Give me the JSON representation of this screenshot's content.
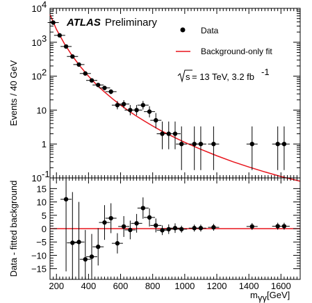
{
  "chart_data": [
    {
      "type": "scatter",
      "panel": "main",
      "title": "",
      "experiment_label": "ATLAS",
      "status_label": "Preliminary",
      "energy_label": "√s = 13 TeV, 3.2 fb-1",
      "energy_parts": {
        "sqrt_s": "s",
        "rest": " = 13 TeV, 3.2 fb",
        "superscript": "-1"
      },
      "xlabel": "m",
      "xlabel_sub": "γγ",
      "xlabel_unit": " [GeV]",
      "ylabel": "Events / 40 GeV",
      "xlim": [
        160,
        1720
      ],
      "ylim": [
        0.1,
        10000
      ],
      "yscale": "log",
      "x_ticks": [
        200,
        400,
        600,
        800,
        1000,
        1200,
        1400,
        1600
      ],
      "y_ticks": [
        {
          "value": 0.1,
          "base": "10",
          "exp": "-1"
        },
        {
          "value": 1,
          "label": "1"
        },
        {
          "value": 10,
          "label": "10"
        },
        {
          "value": 100,
          "base": "10",
          "exp": "2"
        },
        {
          "value": 1000,
          "base": "10",
          "exp": "3"
        },
        {
          "value": 10000,
          "base": "10",
          "exp": "4"
        }
      ],
      "legend": {
        "placement": "top-right",
        "entries": [
          "Data",
          "Background-only fit"
        ]
      },
      "series": [
        {
          "name": "Data",
          "x": [
            180,
            220,
            260,
            300,
            340,
            380,
            420,
            460,
            500,
            540,
            580,
            620,
            660,
            700,
            740,
            780,
            820,
            860,
            900,
            940,
            980,
            1060,
            1100,
            1180,
            1420,
            1580,
            1620
          ],
          "y": [
            3800,
            1600,
            750,
            380,
            220,
            120,
            75,
            55,
            45,
            35,
            14,
            15,
            10,
            10,
            14,
            9,
            5,
            2,
            2,
            2,
            1,
            1,
            1,
            1,
            1,
            1,
            1
          ],
          "y_err_low": [
            60,
            40,
            27,
            19,
            15,
            11,
            8.5,
            7,
            6.5,
            5.6,
            3.5,
            3.6,
            3,
            3,
            3.6,
            2.9,
            2.1,
            1.3,
            1.3,
            1.3,
            0.83,
            0.83,
            0.83,
            0.83,
            0.83,
            0.83,
            0.83
          ],
          "y_err_high": [
            60,
            40,
            27,
            19,
            15,
            11,
            8.5,
            7,
            6.5,
            5.6,
            4.5,
            4.6,
            4.1,
            4.1,
            4.6,
            4,
            3.2,
            2.6,
            2.6,
            2.6,
            2.3,
            2.3,
            2.3,
            2.3,
            2.3,
            2.3,
            2.3
          ]
        },
        {
          "name": "Background-only fit",
          "type": "line",
          "color": "#e8141c",
          "x": [
            160,
            200,
            250,
            300,
            350,
            400,
            450,
            500,
            550,
            600,
            650,
            700,
            750,
            800,
            850,
            900,
            950,
            1000,
            1100,
            1200,
            1300,
            1400,
            1500,
            1600,
            1720
          ],
          "y": [
            6500,
            2400,
            900,
            390,
            190,
            100,
            56,
            34,
            21.5,
            14,
            9.5,
            6.6,
            4.7,
            3.4,
            2.5,
            1.9,
            1.45,
            1.12,
            0.7,
            0.45,
            0.3,
            0.21,
            0.15,
            0.11,
            0.08
          ]
        }
      ]
    },
    {
      "type": "scatter",
      "panel": "ratio",
      "xlabel": "m",
      "ylabel": "Data - fitted background",
      "xlim": [
        160,
        1720
      ],
      "ylim": [
        -19,
        19
      ],
      "x_ticks": [
        200,
        400,
        600,
        800,
        1000,
        1200,
        1400,
        1600
      ],
      "y_ticks": [
        -15,
        -10,
        -5,
        0,
        5,
        10,
        15
      ],
      "series": [
        {
          "name": "Data",
          "x": [
            260,
            300,
            340,
            380,
            420,
            460,
            500,
            540,
            580,
            620,
            660,
            700,
            740,
            780,
            820,
            860,
            900,
            940,
            980,
            1060,
            1100,
            1180,
            1420,
            1580,
            1620
          ],
          "y": [
            11,
            -5.3,
            -5,
            -11.5,
            -10.5,
            -6.8,
            2.3,
            3.9,
            -5.5,
            0.8,
            -0.5,
            2,
            7.7,
            4.2,
            1.2,
            -0.6,
            -0.2,
            0.2,
            -0.2,
            0.2,
            0.2,
            0.5,
            0.8,
            0.9,
            0.9
          ],
          "y_err": [
            27,
            19,
            15,
            11,
            8.5,
            7,
            6.5,
            5.6,
            3.8,
            3.9,
            3.5,
            3.5,
            4,
            3.4,
            2.6,
            1.8,
            1.8,
            1.8,
            1.3,
            1.3,
            1.3,
            1.3,
            1.3,
            1.3,
            1.3
          ]
        },
        {
          "name": "Background-only fit",
          "type": "line",
          "color": "#e8141c",
          "x": [
            160,
            1720
          ],
          "y": [
            0,
            0
          ]
        }
      ]
    }
  ]
}
